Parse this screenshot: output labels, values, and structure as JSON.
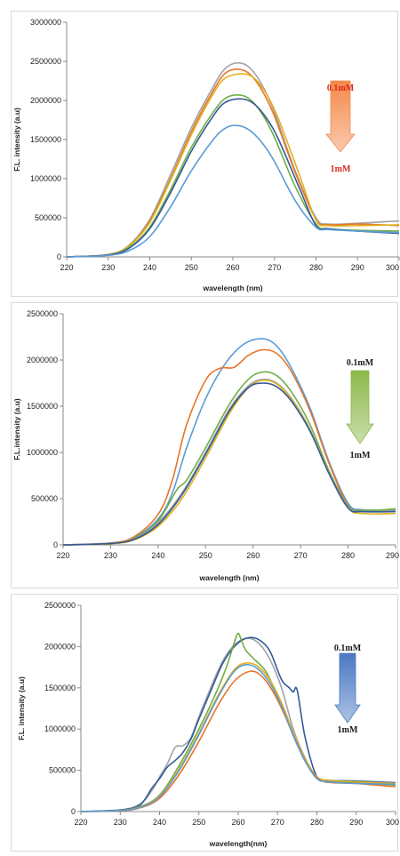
{
  "chart_data": [
    {
      "type": "line",
      "xlabel": "wavelength (nm)",
      "ylabel": "F.L. intensity (a.u)",
      "xlim": [
        220,
        300
      ],
      "ylim": [
        0,
        3000000
      ],
      "xticks": [
        "220",
        "230",
        "240",
        "250",
        "260",
        "270",
        "280",
        "290",
        "300"
      ],
      "yticks": [
        "0",
        "500000",
        "1000000",
        "1500000",
        "2000000",
        "2500000",
        "3000000"
      ],
      "arrow": {
        "top_label": "0.1mM",
        "bottom_label": "1mM",
        "color": "#f4894a",
        "label_color": "#d9261c"
      },
      "series": [
        {
          "color": "#9ea3a8",
          "x": [
            220,
            230,
            235,
            240,
            245,
            250,
            255,
            258,
            261,
            264,
            267,
            270,
            275,
            280,
            283,
            290,
            300
          ],
          "y": [
            0,
            30000,
            150000,
            480000,
            1050000,
            1650000,
            2150000,
            2400000,
            2480000,
            2420000,
            2200000,
            1850000,
            1100000,
            500000,
            420000,
            430000,
            460000
          ]
        },
        {
          "color": "#e7742b",
          "x": [
            220,
            230,
            235,
            240,
            245,
            250,
            255,
            258,
            261,
            264,
            267,
            270,
            275,
            280,
            283,
            290,
            300
          ],
          "y": [
            0,
            30000,
            140000,
            460000,
            1000000,
            1600000,
            2100000,
            2340000,
            2400000,
            2340000,
            2130000,
            1800000,
            1080000,
            480000,
            410000,
            420000,
            400000
          ]
        },
        {
          "color": "#e0b11e",
          "x": [
            220,
            230,
            235,
            240,
            245,
            250,
            255,
            258,
            262,
            265,
            268,
            271,
            276,
            280,
            283,
            290,
            300
          ],
          "y": [
            0,
            30000,
            140000,
            440000,
            980000,
            1560000,
            2060000,
            2280000,
            2340000,
            2290000,
            2090000,
            1760000,
            1050000,
            470000,
            400000,
            400000,
            410000
          ]
        },
        {
          "color": "#70ad47",
          "x": [
            220,
            230,
            235,
            240,
            245,
            250,
            255,
            258,
            261,
            264,
            267,
            270,
            275,
            280,
            283,
            290,
            300
          ],
          "y": [
            0,
            25000,
            120000,
            380000,
            860000,
            1400000,
            1830000,
            2020000,
            2070000,
            2020000,
            1830000,
            1530000,
            900000,
            420000,
            360000,
            340000,
            330000
          ]
        },
        {
          "color": "#335a96",
          "x": [
            220,
            230,
            235,
            240,
            245,
            250,
            255,
            258,
            262,
            265,
            268,
            271,
            276,
            280,
            283,
            290,
            300
          ],
          "y": [
            0,
            25000,
            110000,
            360000,
            820000,
            1350000,
            1780000,
            1970000,
            2020000,
            1960000,
            1780000,
            1500000,
            880000,
            400000,
            360000,
            330000,
            300000
          ]
        },
        {
          "color": "#5b9bd5",
          "x": [
            220,
            230,
            235,
            240,
            245,
            250,
            255,
            258,
            261,
            264,
            267,
            270,
            275,
            280,
            283,
            290,
            300
          ],
          "y": [
            0,
            20000,
            80000,
            260000,
            640000,
            1100000,
            1480000,
            1640000,
            1680000,
            1620000,
            1460000,
            1220000,
            720000,
            380000,
            350000,
            330000,
            310000
          ]
        }
      ]
    },
    {
      "type": "line",
      "xlabel": "wavelength (nm)",
      "ylabel": "F.L.intensity (a.u)",
      "xlim": [
        220,
        290
      ],
      "ylim": [
        0,
        2500000
      ],
      "xticks": [
        "220",
        "230",
        "240",
        "250",
        "260",
        "270",
        "280",
        "290"
      ],
      "yticks": [
        "0",
        "500000",
        "1000000",
        "1500000",
        "2000000",
        "2500000"
      ],
      "arrow": {
        "top_label": "0.1mM",
        "bottom_label": "1mM",
        "color": "#8cb84a",
        "label_color": "#1a1a1a"
      },
      "series": [
        {
          "color": "#5b9bd5",
          "x": [
            220,
            230,
            235,
            240,
            243,
            246,
            250,
            254,
            258,
            262,
            265,
            268,
            272,
            276,
            280,
            283,
            290
          ],
          "y": [
            0,
            20000,
            80000,
            280000,
            560000,
            1050000,
            1580000,
            1950000,
            2170000,
            2230000,
            2150000,
            1920000,
            1480000,
            900000,
            450000,
            380000,
            380000
          ]
        },
        {
          "color": "#e7742b",
          "x": [
            220,
            230,
            235,
            240,
            243,
            246,
            250,
            253,
            256,
            259,
            262,
            265,
            268,
            272,
            276,
            280,
            283,
            290
          ],
          "y": [
            0,
            20000,
            90000,
            330000,
            700000,
            1300000,
            1780000,
            1910000,
            1920000,
            2050000,
            2110000,
            2070000,
            1880000,
            1450000,
            880000,
            430000,
            370000,
            370000
          ]
        },
        {
          "color": "#70ad47",
          "x": [
            220,
            230,
            235,
            240,
            244,
            246,
            250,
            255,
            259,
            262,
            265,
            268,
            272,
            276,
            280,
            283,
            290
          ],
          "y": [
            0,
            15000,
            70000,
            260000,
            600000,
            700000,
            1050000,
            1520000,
            1790000,
            1870000,
            1830000,
            1660000,
            1300000,
            800000,
            420000,
            370000,
            390000
          ]
        },
        {
          "color": "#9ea3a8",
          "x": [
            220,
            230,
            235,
            240,
            245,
            250,
            255,
            259,
            262,
            265,
            268,
            272,
            276,
            280,
            283,
            290
          ],
          "y": [
            0,
            15000,
            65000,
            240000,
            560000,
            1000000,
            1470000,
            1720000,
            1790000,
            1750000,
            1590000,
            1250000,
            780000,
            410000,
            360000,
            370000
          ]
        },
        {
          "color": "#e0b11e",
          "x": [
            220,
            230,
            235,
            240,
            245,
            250,
            255,
            259,
            262,
            265,
            268,
            272,
            276,
            280,
            283,
            290
          ],
          "y": [
            0,
            12000,
            55000,
            200000,
            500000,
            940000,
            1420000,
            1700000,
            1780000,
            1740000,
            1580000,
            1240000,
            770000,
            400000,
            340000,
            340000
          ]
        },
        {
          "color": "#335a96",
          "x": [
            220,
            230,
            235,
            240,
            245,
            250,
            255,
            259,
            262,
            265,
            268,
            272,
            276,
            280,
            283,
            290
          ],
          "y": [
            0,
            15000,
            60000,
            220000,
            540000,
            980000,
            1450000,
            1700000,
            1750000,
            1710000,
            1560000,
            1230000,
            770000,
            400000,
            360000,
            360000
          ]
        }
      ]
    },
    {
      "type": "line",
      "xlabel": "wavelength(nm)",
      "ylabel": "F.L. intensity (a.u)",
      "xlim": [
        220,
        300
      ],
      "ylim": [
        0,
        2500000
      ],
      "xticks": [
        "220",
        "230",
        "240",
        "250",
        "260",
        "270",
        "280",
        "290",
        "300"
      ],
      "yticks": [
        "0",
        "500000",
        "1000000",
        "1500000",
        "2000000",
        "2500000"
      ],
      "arrow": {
        "top_label": "0.1mM",
        "bottom_label": "1mM",
        "color": "#4a78c2",
        "label_color": "#1a1a1a"
      },
      "series": [
        {
          "color": "#9ea3a8",
          "x": [
            220,
            230,
            235,
            238,
            240,
            242,
            244,
            246,
            248,
            250,
            253,
            256,
            259,
            262,
            265,
            268,
            271,
            274,
            277,
            280,
            283,
            290,
            300
          ],
          "y": [
            0,
            20000,
            90000,
            250000,
            420000,
            580000,
            780000,
            800000,
            900000,
            1150000,
            1500000,
            1820000,
            2020000,
            2100000,
            2050000,
            1850000,
            1500000,
            1000000,
            650000,
            420000,
            380000,
            360000,
            340000
          ]
        },
        {
          "color": "#335a96",
          "x": [
            220,
            230,
            235,
            238,
            240,
            242,
            244,
            246,
            248,
            250,
            253,
            256,
            259,
            262,
            265,
            268,
            271,
            273,
            274,
            275,
            277,
            280,
            283,
            290,
            300
          ],
          "y": [
            0,
            20000,
            80000,
            280000,
            400000,
            540000,
            620000,
            720000,
            880000,
            1120000,
            1460000,
            1790000,
            2000000,
            2100000,
            2090000,
            1950000,
            1600000,
            1500000,
            1450000,
            1470000,
            900000,
            420000,
            380000,
            370000,
            350000
          ]
        },
        {
          "color": "#70ad47",
          "x": [
            220,
            230,
            235,
            240,
            245,
            250,
            254,
            257,
            259,
            260,
            261,
            262,
            264,
            267,
            270,
            274,
            277,
            280,
            283,
            290,
            300
          ],
          "y": [
            0,
            15000,
            60000,
            200000,
            560000,
            1000000,
            1400000,
            1750000,
            2050000,
            2160000,
            2050000,
            1950000,
            1850000,
            1700000,
            1400000,
            920000,
            620000,
            400000,
            370000,
            350000,
            320000
          ]
        },
        {
          "color": "#e0b11e",
          "x": [
            220,
            230,
            235,
            240,
            245,
            250,
            255,
            259,
            262,
            265,
            268,
            271,
            274,
            277,
            280,
            283,
            290,
            300
          ],
          "y": [
            0,
            12000,
            55000,
            190000,
            520000,
            950000,
            1420000,
            1720000,
            1800000,
            1760000,
            1600000,
            1320000,
            960000,
            640000,
            420000,
            380000,
            360000,
            340000
          ]
        },
        {
          "color": "#e7742b",
          "x": [
            220,
            230,
            235,
            240,
            245,
            250,
            255,
            259,
            263,
            266,
            269,
            272,
            275,
            278,
            281,
            284,
            290,
            300
          ],
          "y": [
            0,
            10000,
            45000,
            160000,
            450000,
            850000,
            1300000,
            1580000,
            1700000,
            1640000,
            1440000,
            1150000,
            820000,
            530000,
            380000,
            350000,
            340000,
            300000
          ]
        },
        {
          "color": "#5b9bd5",
          "x": [
            220,
            230,
            235,
            240,
            245,
            250,
            255,
            259,
            262,
            265,
            268,
            271,
            274,
            277,
            280,
            283,
            290,
            300
          ],
          "y": [
            0,
            12000,
            50000,
            180000,
            500000,
            930000,
            1400000,
            1700000,
            1780000,
            1730000,
            1560000,
            1280000,
            920000,
            610000,
            400000,
            360000,
            340000,
            330000
          ]
        }
      ]
    }
  ]
}
